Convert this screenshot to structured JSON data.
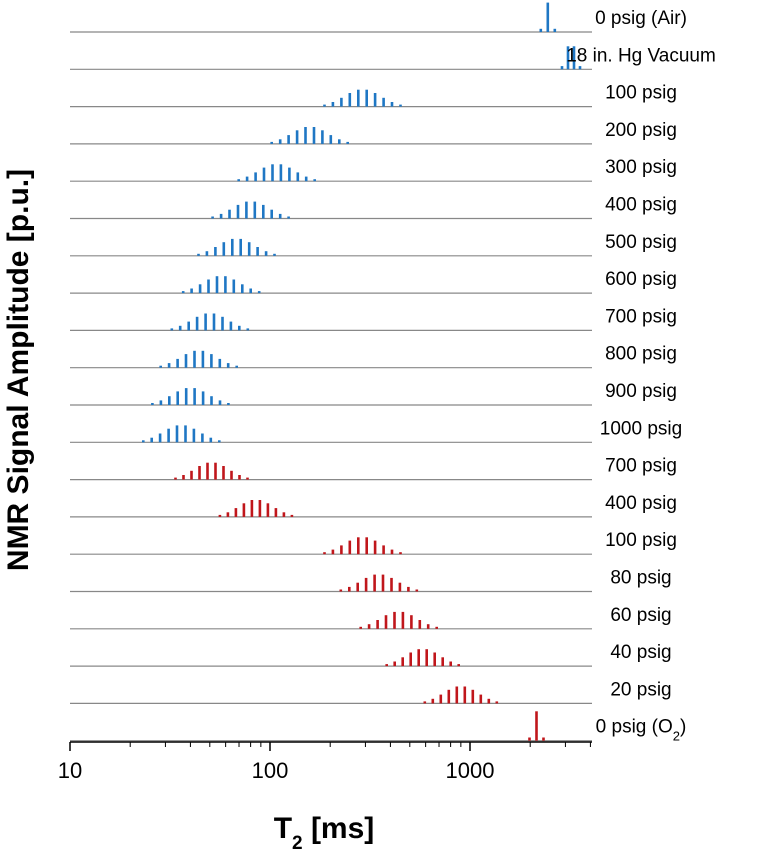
{
  "chart_data": {
    "type": "bar",
    "xlabel": "T",
    "xlabel_sub": "2",
    "xlabel_unit": "[ms]",
    "ylabel": "NMR Signal Amplitude [p.u.]",
    "xscale": "log",
    "xlim": [
      10,
      4000
    ],
    "x_tick_labels": [
      {
        "value": 10,
        "label": "10"
      },
      {
        "value": 100,
        "label": "100"
      },
      {
        "value": 1000,
        "label": "1000"
      }
    ],
    "colors": {
      "blue": "#1f77c4",
      "red": "#c0161b",
      "baseline": "#888888",
      "axis": "#000000"
    },
    "series": [
      {
        "label": "0 psig (Air)",
        "color": "blue",
        "peak_t2": 2450,
        "width_decades": 0.07,
        "bars": 3
      },
      {
        "label": "18 in. Hg Vacuum",
        "color": "blue",
        "peak_t2": 3200,
        "width_decades": 0.09,
        "bars": 4
      },
      {
        "label": "100 psig",
        "color": "blue",
        "peak_t2": 290,
        "width_decades": 0.38,
        "bars": 10
      },
      {
        "label": "200 psig",
        "color": "blue",
        "peak_t2": 158,
        "width_decades": 0.38,
        "bars": 10
      },
      {
        "label": "300 psig",
        "color": "blue",
        "peak_t2": 108,
        "width_decades": 0.38,
        "bars": 10
      },
      {
        "label": "400 psig",
        "color": "blue",
        "peak_t2": 80,
        "width_decades": 0.38,
        "bars": 10
      },
      {
        "label": "500 psig",
        "color": "blue",
        "peak_t2": 68,
        "width_decades": 0.38,
        "bars": 10
      },
      {
        "label": "600 psig",
        "color": "blue",
        "peak_t2": 57,
        "width_decades": 0.38,
        "bars": 10
      },
      {
        "label": "700 psig",
        "color": "blue",
        "peak_t2": 50,
        "width_decades": 0.38,
        "bars": 10
      },
      {
        "label": "800 psig",
        "color": "blue",
        "peak_t2": 44,
        "width_decades": 0.38,
        "bars": 10
      },
      {
        "label": "900 psig",
        "color": "blue",
        "peak_t2": 40,
        "width_decades": 0.38,
        "bars": 10
      },
      {
        "label": "1000 psig",
        "color": "blue",
        "peak_t2": 36,
        "width_decades": 0.38,
        "bars": 10
      },
      {
        "label": "700 psig",
        "color": "red",
        "peak_t2": 51,
        "width_decades": 0.36,
        "bars": 10
      },
      {
        "label": "400 psig",
        "color": "red",
        "peak_t2": 85,
        "width_decades": 0.36,
        "bars": 10
      },
      {
        "label": "100 psig",
        "color": "red",
        "peak_t2": 290,
        "width_decades": 0.38,
        "bars": 10
      },
      {
        "label": "80 psig",
        "color": "red",
        "peak_t2": 350,
        "width_decades": 0.38,
        "bars": 10
      },
      {
        "label": "60 psig",
        "color": "red",
        "peak_t2": 440,
        "width_decades": 0.38,
        "bars": 10
      },
      {
        "label": "40 psig",
        "color": "red",
        "peak_t2": 580,
        "width_decades": 0.36,
        "bars": 10
      },
      {
        "label": "20 psig",
        "color": "red",
        "peak_t2": 900,
        "width_decades": 0.36,
        "bars": 10
      },
      {
        "label": "0 psig (O",
        "label_sub": "2",
        "label_suffix": ")",
        "color": "red",
        "peak_t2": 2150,
        "width_decades": 0.07,
        "bars": 3
      }
    ]
  }
}
